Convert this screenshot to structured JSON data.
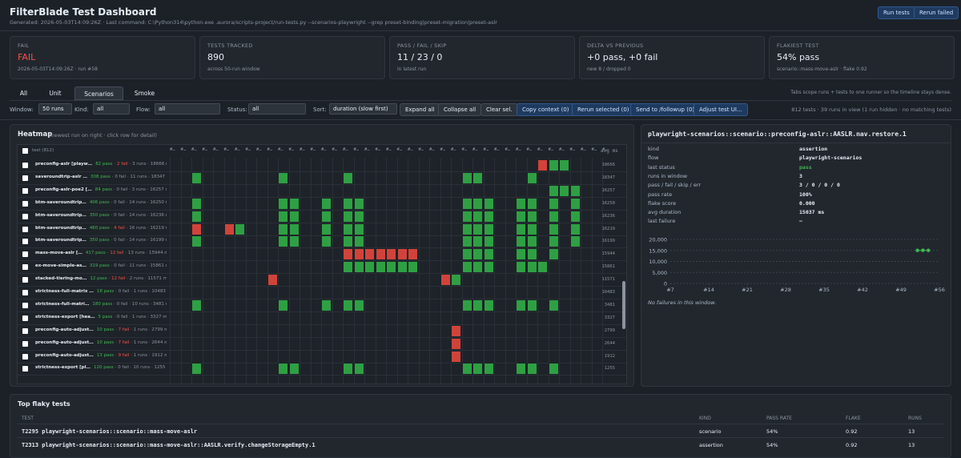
{
  "header": {
    "title": "FilterBlade Test Dashboard",
    "generated": "Generated: 2026-05-03T14:09:26Z  ·  Last command: C:\\Python314\\python.exe .aurora/scripts-project/run-tests.py --scenarios-playwright --grep preset-binding|preset-migration|preset-aslr",
    "buttons": [
      "Run tests",
      "Rerun failed"
    ]
  },
  "cards": [
    {
      "label": "FAIL",
      "value": "FAIL",
      "sub": "2026-05-03T14:09:26Z · run #58"
    },
    {
      "label": "TESTS TRACKED",
      "value": "890",
      "sub": "across 50-run window"
    },
    {
      "label": "PASS / FAIL / SKIP",
      "value": "11 / 23 / 0",
      "sub": "in latest run"
    },
    {
      "label": "DELTA VS PREVIOUS",
      "value": "+0 pass, +0 fail",
      "sub": "new 8 / dropped 0"
    },
    {
      "label": "FLAKIEST TEST",
      "value": "54% pass",
      "sub": "scenario::mass-move-aslr · flake 0.92"
    }
  ],
  "tabs": {
    "items": [
      "All",
      "Unit",
      "Scenarios",
      "Smoke"
    ],
    "active": 2,
    "note": "Tabs scope runs + tests to one runner so the timeline stays dense."
  },
  "toolbar": {
    "filters": [
      {
        "label": "Window:",
        "value": "50 runs"
      },
      {
        "label": "Kind:",
        "value": "all"
      },
      {
        "label": "Flow:",
        "value": "all"
      },
      {
        "label": "Status:",
        "value": "all"
      },
      {
        "label": "Sort:",
        "value": "duration (slow first)"
      }
    ],
    "buttons": [
      "Expand all",
      "Collapse all",
      "Clear sel."
    ],
    "actions": [
      "Copy context (0)",
      "Rerun selected (0)",
      "Send to /followup (0)",
      "Adjust test UI…"
    ],
    "summary": "812 tests · 39 runs in view (1 run hidden · no matching tests)"
  },
  "heatmap": {
    "title": "Heatmap",
    "hint": "(newest run on right · click row for detail)",
    "test_header": "test (812)",
    "avg_header": "avg ms",
    "column_labels": [
      "#…",
      "#…",
      "#…",
      "#…",
      "#…",
      "#…",
      "#…",
      "#…",
      "#…",
      "#…",
      "#…",
      "#…",
      "#…",
      "#…",
      "#…",
      "#…",
      "#…",
      "#…",
      "#…",
      "#…",
      "#…",
      "#…",
      "#…",
      "#…",
      "#…",
      "#…",
      "#…",
      "#…",
      "#…",
      "#…",
      "#…",
      "#…",
      "#…",
      "#…",
      "#…",
      "#…",
      "#…",
      "#…",
      "#…",
      "#…",
      "#…"
    ],
    "rows": [
      {
        "name": "preconfig-aslr [playw…",
        "pass": "82 pass",
        "fail": "· 2 fail",
        "rest": "· 3 runs · 18666 ms",
        "avg": "18666",
        "pass_cols": [
          35,
          36
        ],
        "fail_cols": [
          34
        ]
      },
      {
        "name": "saveroundtrip-aslr …",
        "pass": "308 pass",
        "fail": "· 0 fail",
        "rest": "· 11 runs · 18347 ms",
        "avg": "18347",
        "pass_cols": [
          2,
          10,
          16,
          27,
          28,
          33
        ],
        "fail_cols": []
      },
      {
        "name": "preconfig-aslr-poe2 […",
        "pass": "84 pass",
        "fail": "· 0 fail",
        "rest": "· 3 runs · 16257 ms",
        "avg": "16257",
        "pass_cols": [
          35,
          36,
          37
        ],
        "fail_cols": []
      },
      {
        "name": "btm-saveroundtrip…",
        "pass": "406 pass",
        "fail": "· 0 fail",
        "rest": "· 14 runs · 16250 ms",
        "avg": "16250",
        "pass_cols": [
          2,
          10,
          11,
          14,
          16,
          17,
          27,
          28,
          29,
          32,
          33,
          35,
          37
        ],
        "fail_cols": []
      },
      {
        "name": "btm-saveroundtrip…",
        "pass": "350 pass",
        "fail": "· 0 fail",
        "rest": "· 14 runs · 16236 ms",
        "avg": "16236",
        "pass_cols": [
          2,
          10,
          11,
          14,
          16,
          17,
          27,
          28,
          29,
          32,
          33,
          35,
          37
        ],
        "fail_cols": []
      },
      {
        "name": "btm-saveroundtrip…",
        "pass": "460 pass",
        "fail": "· 4 fail",
        "rest": "· 16 runs · 16219 ms",
        "avg": "16219",
        "pass_cols": [
          6,
          10,
          11,
          14,
          16,
          17,
          27,
          28,
          29,
          32,
          33,
          35,
          37
        ],
        "fail_cols": [
          2,
          5
        ]
      },
      {
        "name": "btm-saveroundtrip…",
        "pass": "350 pass",
        "fail": "· 0 fail",
        "rest": "· 14 runs · 16199 ms",
        "avg": "16199",
        "pass_cols": [
          2,
          10,
          11,
          14,
          16,
          17,
          27,
          28,
          29,
          32,
          33,
          35,
          37
        ],
        "fail_cols": []
      },
      {
        "name": "mass-move-aslr […",
        "pass": "417 pass",
        "fail": "· 12 fail",
        "rest": "· 13 runs · 15944 ms",
        "avg": "15944",
        "pass_cols": [
          27,
          28,
          29,
          32,
          33,
          35
        ],
        "fail_cols": [
          16,
          17,
          18,
          19,
          20,
          21,
          22
        ]
      },
      {
        "name": "ex-move-simple-as…",
        "pass": "319 pass",
        "fail": "· 0 fail",
        "rest": "· 11 runs · 15861 ms",
        "avg": "15861",
        "pass_cols": [
          16,
          17,
          18,
          19,
          20,
          21,
          22,
          27,
          28,
          29,
          32,
          33,
          34
        ],
        "fail_cols": []
      },
      {
        "name": "stacked-tiering-mo…",
        "pass": "12 pass",
        "fail": "· 12 fail",
        "rest": "· 2 runs · 11571 ms",
        "avg": "11571",
        "pass_cols": [
          26
        ],
        "fail_cols": [
          9,
          25
        ]
      },
      {
        "name": "strictness-full-matrix …",
        "pass": "18 pass",
        "fail": "· 0 fail",
        "rest": "· 1 runs · 10483 ms",
        "avg": "10483",
        "pass_cols": [],
        "fail_cols": []
      },
      {
        "name": "strictness-full-matri…",
        "pass": "180 pass",
        "fail": "· 0 fail",
        "rest": "· 10 runs · 3481 ms",
        "avg": "3481",
        "pass_cols": [
          2,
          10,
          14,
          16,
          17,
          27,
          28,
          29,
          32,
          33,
          35
        ],
        "fail_cols": []
      },
      {
        "name": "strictness-export [hea…",
        "pass": "5 pass",
        "fail": "· 0 fail",
        "rest": "· 1 runs · 3327 ms",
        "avg": "3327",
        "pass_cols": [],
        "fail_cols": []
      },
      {
        "name": "preconfig-auto-adjust…",
        "pass": "10 pass",
        "fail": "· 7 fail",
        "rest": "· 1 runs · 2799 ms",
        "avg": "2799",
        "pass_cols": [],
        "fail_cols": [
          26
        ]
      },
      {
        "name": "preconfig-auto-adjust…",
        "pass": "10 pass",
        "fail": "· 7 fail",
        "rest": "· 1 runs · 2644 ms",
        "avg": "2644",
        "pass_cols": [],
        "fail_cols": [
          26
        ]
      },
      {
        "name": "preconfig-auto-adjust…",
        "pass": "13 pass",
        "fail": "· 9 fail",
        "rest": "· 1 runs · 1912 ms",
        "avg": "1912",
        "pass_cols": [],
        "fail_cols": [
          26
        ]
      },
      {
        "name": "strictness-export [pl…",
        "pass": "120 pass",
        "fail": "· 0 fail",
        "rest": "· 10 runs · 1255 ms",
        "avg": "1255",
        "pass_cols": [
          2,
          10,
          11,
          16,
          17,
          27,
          28,
          29,
          32,
          33,
          35
        ],
        "fail_cols": []
      }
    ]
  },
  "detail": {
    "title": "playwright-scenarios::scenario::preconfig-aslr::AASLR.nav.restore.1",
    "fields": [
      {
        "key": "kind",
        "value": "assertion"
      },
      {
        "key": "flow",
        "value": "playwright-scenarios"
      },
      {
        "key": "last status",
        "value": "pass"
      },
      {
        "key": "runs in window",
        "value": "3"
      },
      {
        "key": "pass / fail / skip / err",
        "value": "3 / 0 / 0 / 0"
      },
      {
        "key": "pass rate",
        "value": "100%"
      },
      {
        "key": "flake score",
        "value": "0.000"
      },
      {
        "key": "avg duration",
        "value": "15037 ms"
      },
      {
        "key": "last failure",
        "value": "—"
      }
    ],
    "note": "No failures in this window."
  },
  "chart_data": {
    "type": "scatter",
    "x": [
      52,
      53,
      54
    ],
    "values": [
      15020,
      15050,
      15040
    ],
    "color": "#3fb950",
    "xlim": [
      7,
      56
    ],
    "ylim": [
      0,
      20000
    ],
    "grid": true,
    "xticks": [
      {
        "value": 7,
        "label": "#7"
      },
      {
        "value": 14,
        "label": "#14"
      },
      {
        "value": 21,
        "label": "#21"
      },
      {
        "value": 28,
        "label": "#28"
      },
      {
        "value": 35,
        "label": "#35"
      },
      {
        "value": 42,
        "label": "#42"
      },
      {
        "value": 49,
        "label": "#49"
      },
      {
        "value": 56,
        "label": "#56"
      }
    ],
    "yticks": [
      0,
      {
        "value": 5000,
        "label": "5,000"
      },
      {
        "value": 10000,
        "label": "10,000"
      },
      {
        "value": 15000,
        "label": "15,000"
      },
      {
        "value": 20000,
        "label": "20,000"
      }
    ]
  },
  "flaky": {
    "title": "Top flaky tests",
    "columns": [
      "TEST",
      "KIND",
      "PASS RATE",
      "FLAKE",
      "RUNS"
    ],
    "rows": [
      [
        "T2295 playwright-scenarios::scenario::mass-move-aslr",
        "scenario",
        "54%",
        "0.92",
        "13"
      ],
      [
        "T2313 playwright-scenarios::scenario::mass-move-aslr::AASLR.verify.changeStorageEmpty.1",
        "assertion",
        "54%",
        "0.92",
        "13"
      ]
    ]
  }
}
